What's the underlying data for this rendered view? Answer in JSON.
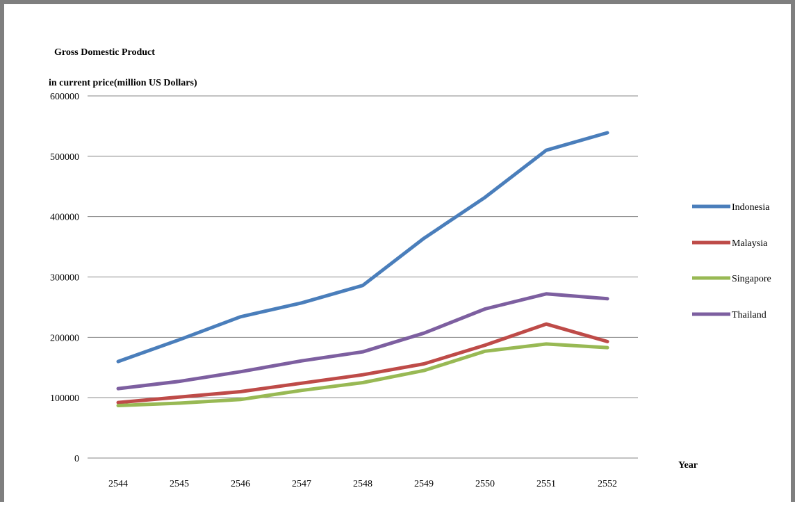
{
  "chart_data": {
    "type": "line",
    "title_lines": [
      "Gross Domestic Product",
      "in current price(million  US Dollars)"
    ],
    "xlabel": "Year",
    "ylabel": "",
    "categories": [
      "2544",
      "2545",
      "2546",
      "2547",
      "2548",
      "2549",
      "2550",
      "2551",
      "2552"
    ],
    "ylim": [
      0,
      600000
    ],
    "yticks": [
      0,
      100000,
      200000,
      300000,
      400000,
      500000,
      600000
    ],
    "grid": true,
    "legend_position": "right",
    "series": [
      {
        "name": "Indonesia",
        "color": "#4a7ebb",
        "values": [
          160000,
          196000,
          234000,
          257000,
          286000,
          364000,
          432000,
          510000,
          539000
        ]
      },
      {
        "name": "Malaysia",
        "color": "#be4b48",
        "values": [
          92000,
          101000,
          110000,
          124000,
          138000,
          156000,
          187000,
          222000,
          193000
        ]
      },
      {
        "name": "Singapore",
        "color": "#98b954",
        "values": [
          87000,
          91000,
          97000,
          112000,
          125000,
          145000,
          177000,
          189000,
          183000
        ]
      },
      {
        "name": "Thailand",
        "color": "#7d5fa0",
        "values": [
          115000,
          127000,
          143000,
          161000,
          176000,
          207000,
          247000,
          272000,
          264000
        ]
      }
    ]
  }
}
